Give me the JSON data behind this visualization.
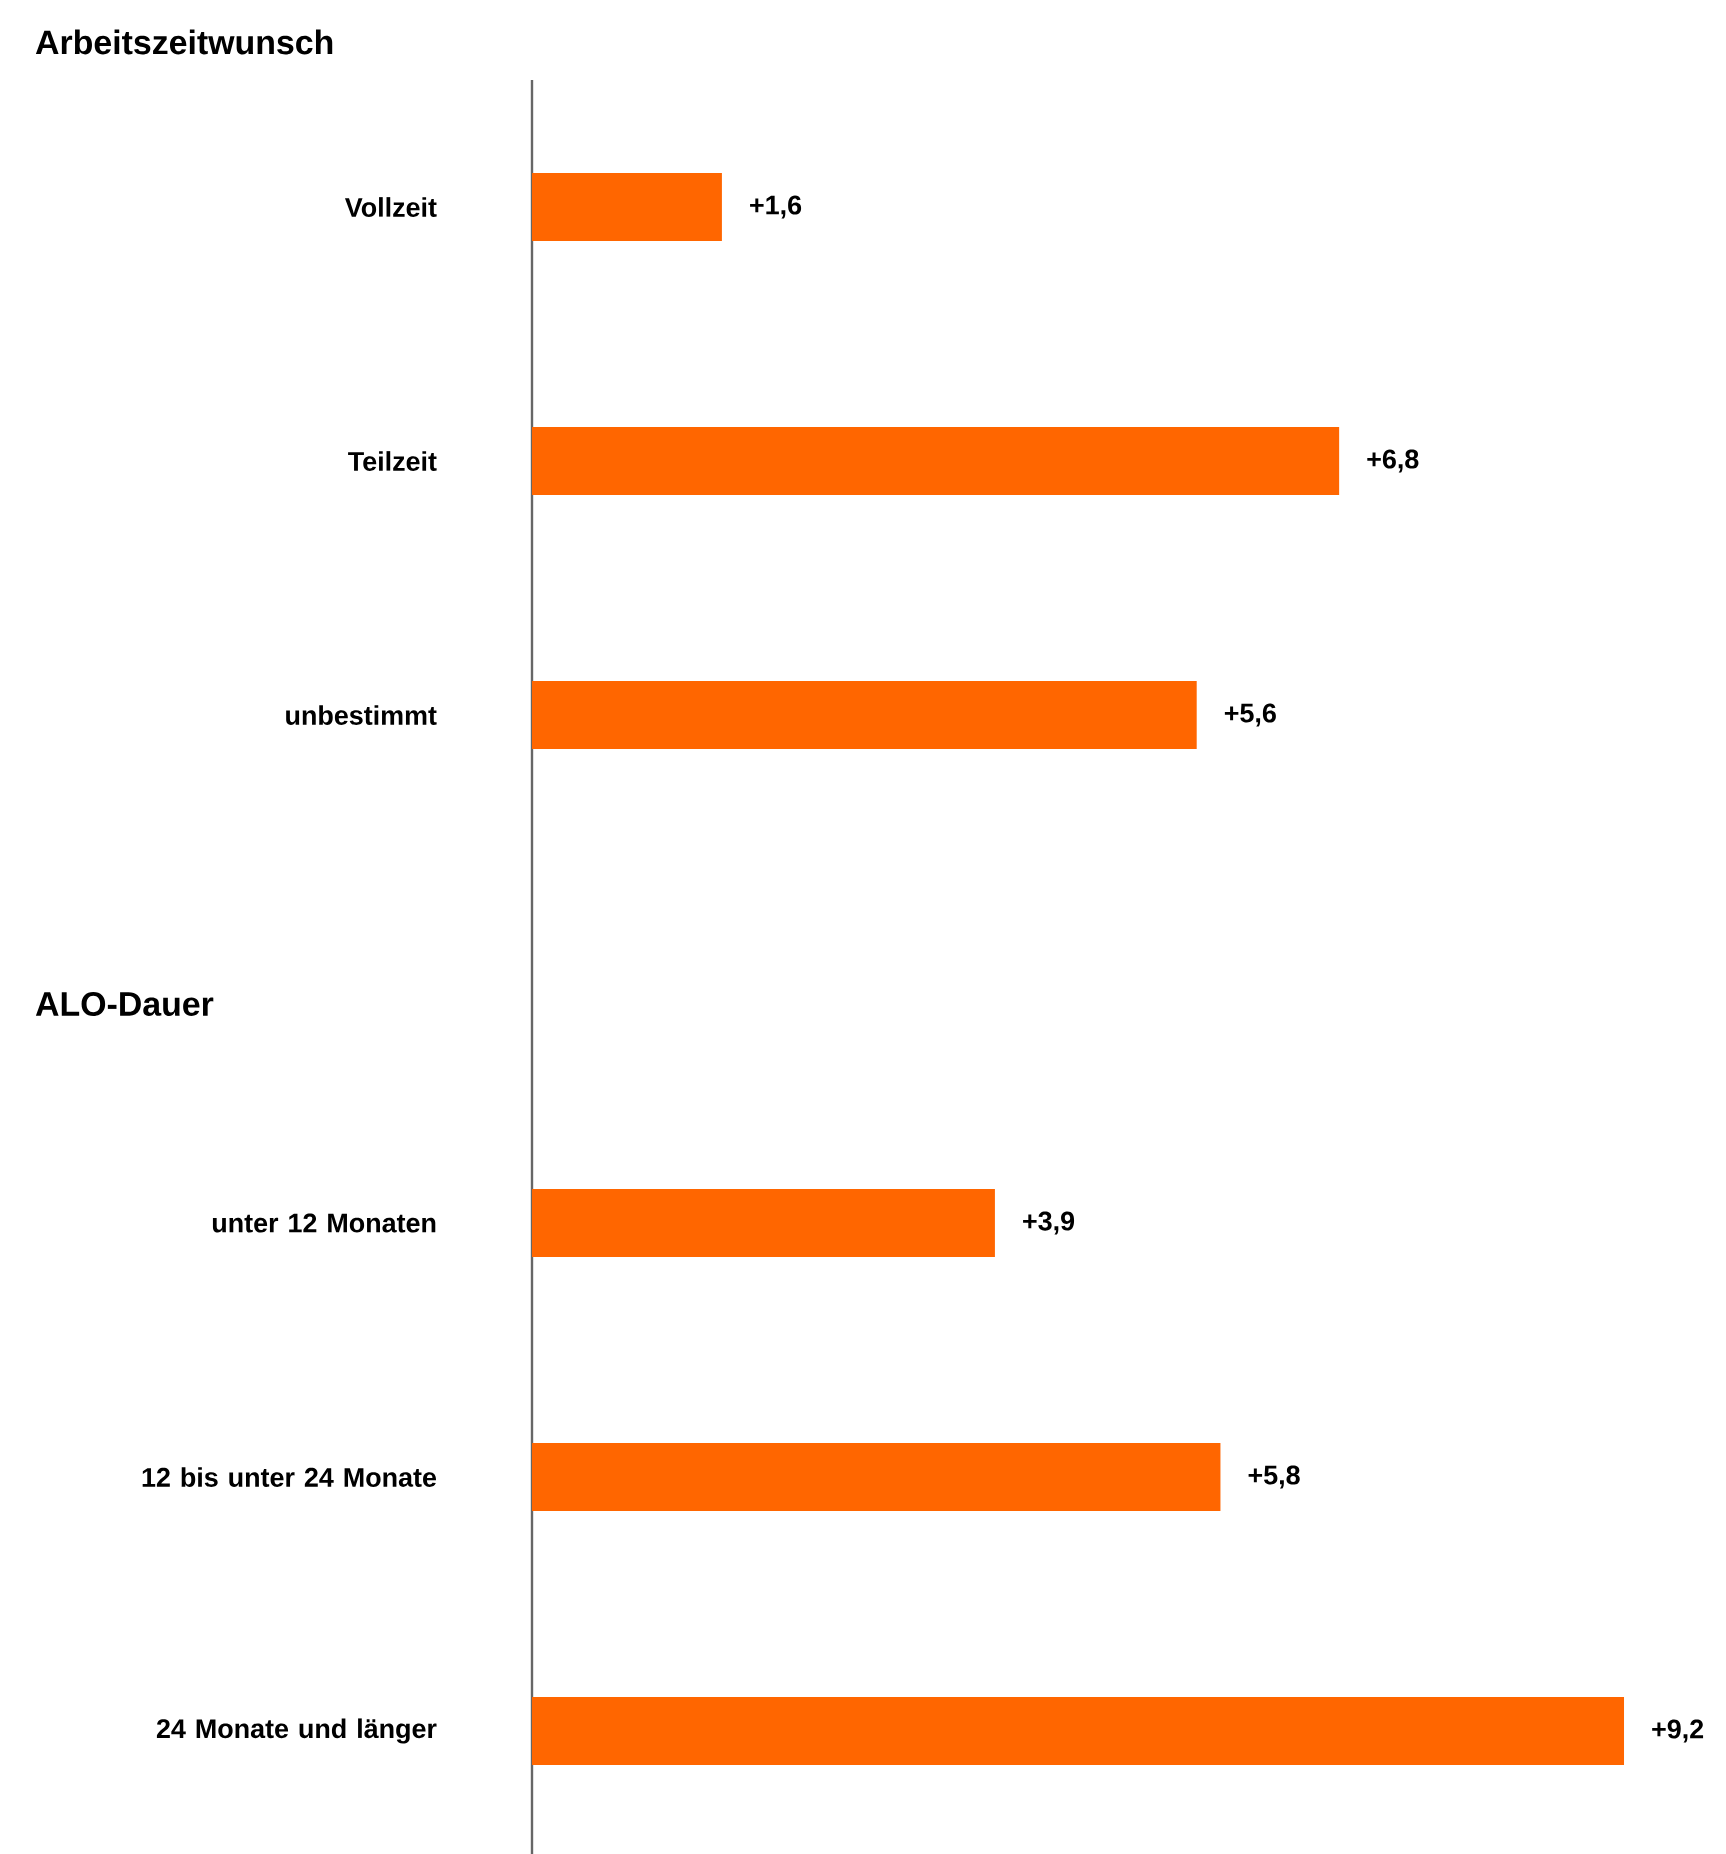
{
  "chart_data": {
    "type": "bar",
    "orientation": "horizontal",
    "title": "Arbeitszeitwunsch",
    "categories": [
      "Vollzeit",
      "Teilzeit",
      "unbestimmt",
      null,
      "unter 12 Monaten",
      "12 bis unter 24 Monate",
      "24 Monate und länger"
    ],
    "values": [
      1.6,
      6.8,
      5.6,
      null,
      3.9,
      5.8,
      9.2
    ],
    "value_labels": [
      "+1,6",
      "+6,8",
      "+5,6",
      null,
      "+3,9",
      "+5,8",
      "+9,2"
    ],
    "color": "#ff6600",
    "tick_labels": "y",
    "annotations": [
      "ALO-Dauer"
    ]
  }
}
